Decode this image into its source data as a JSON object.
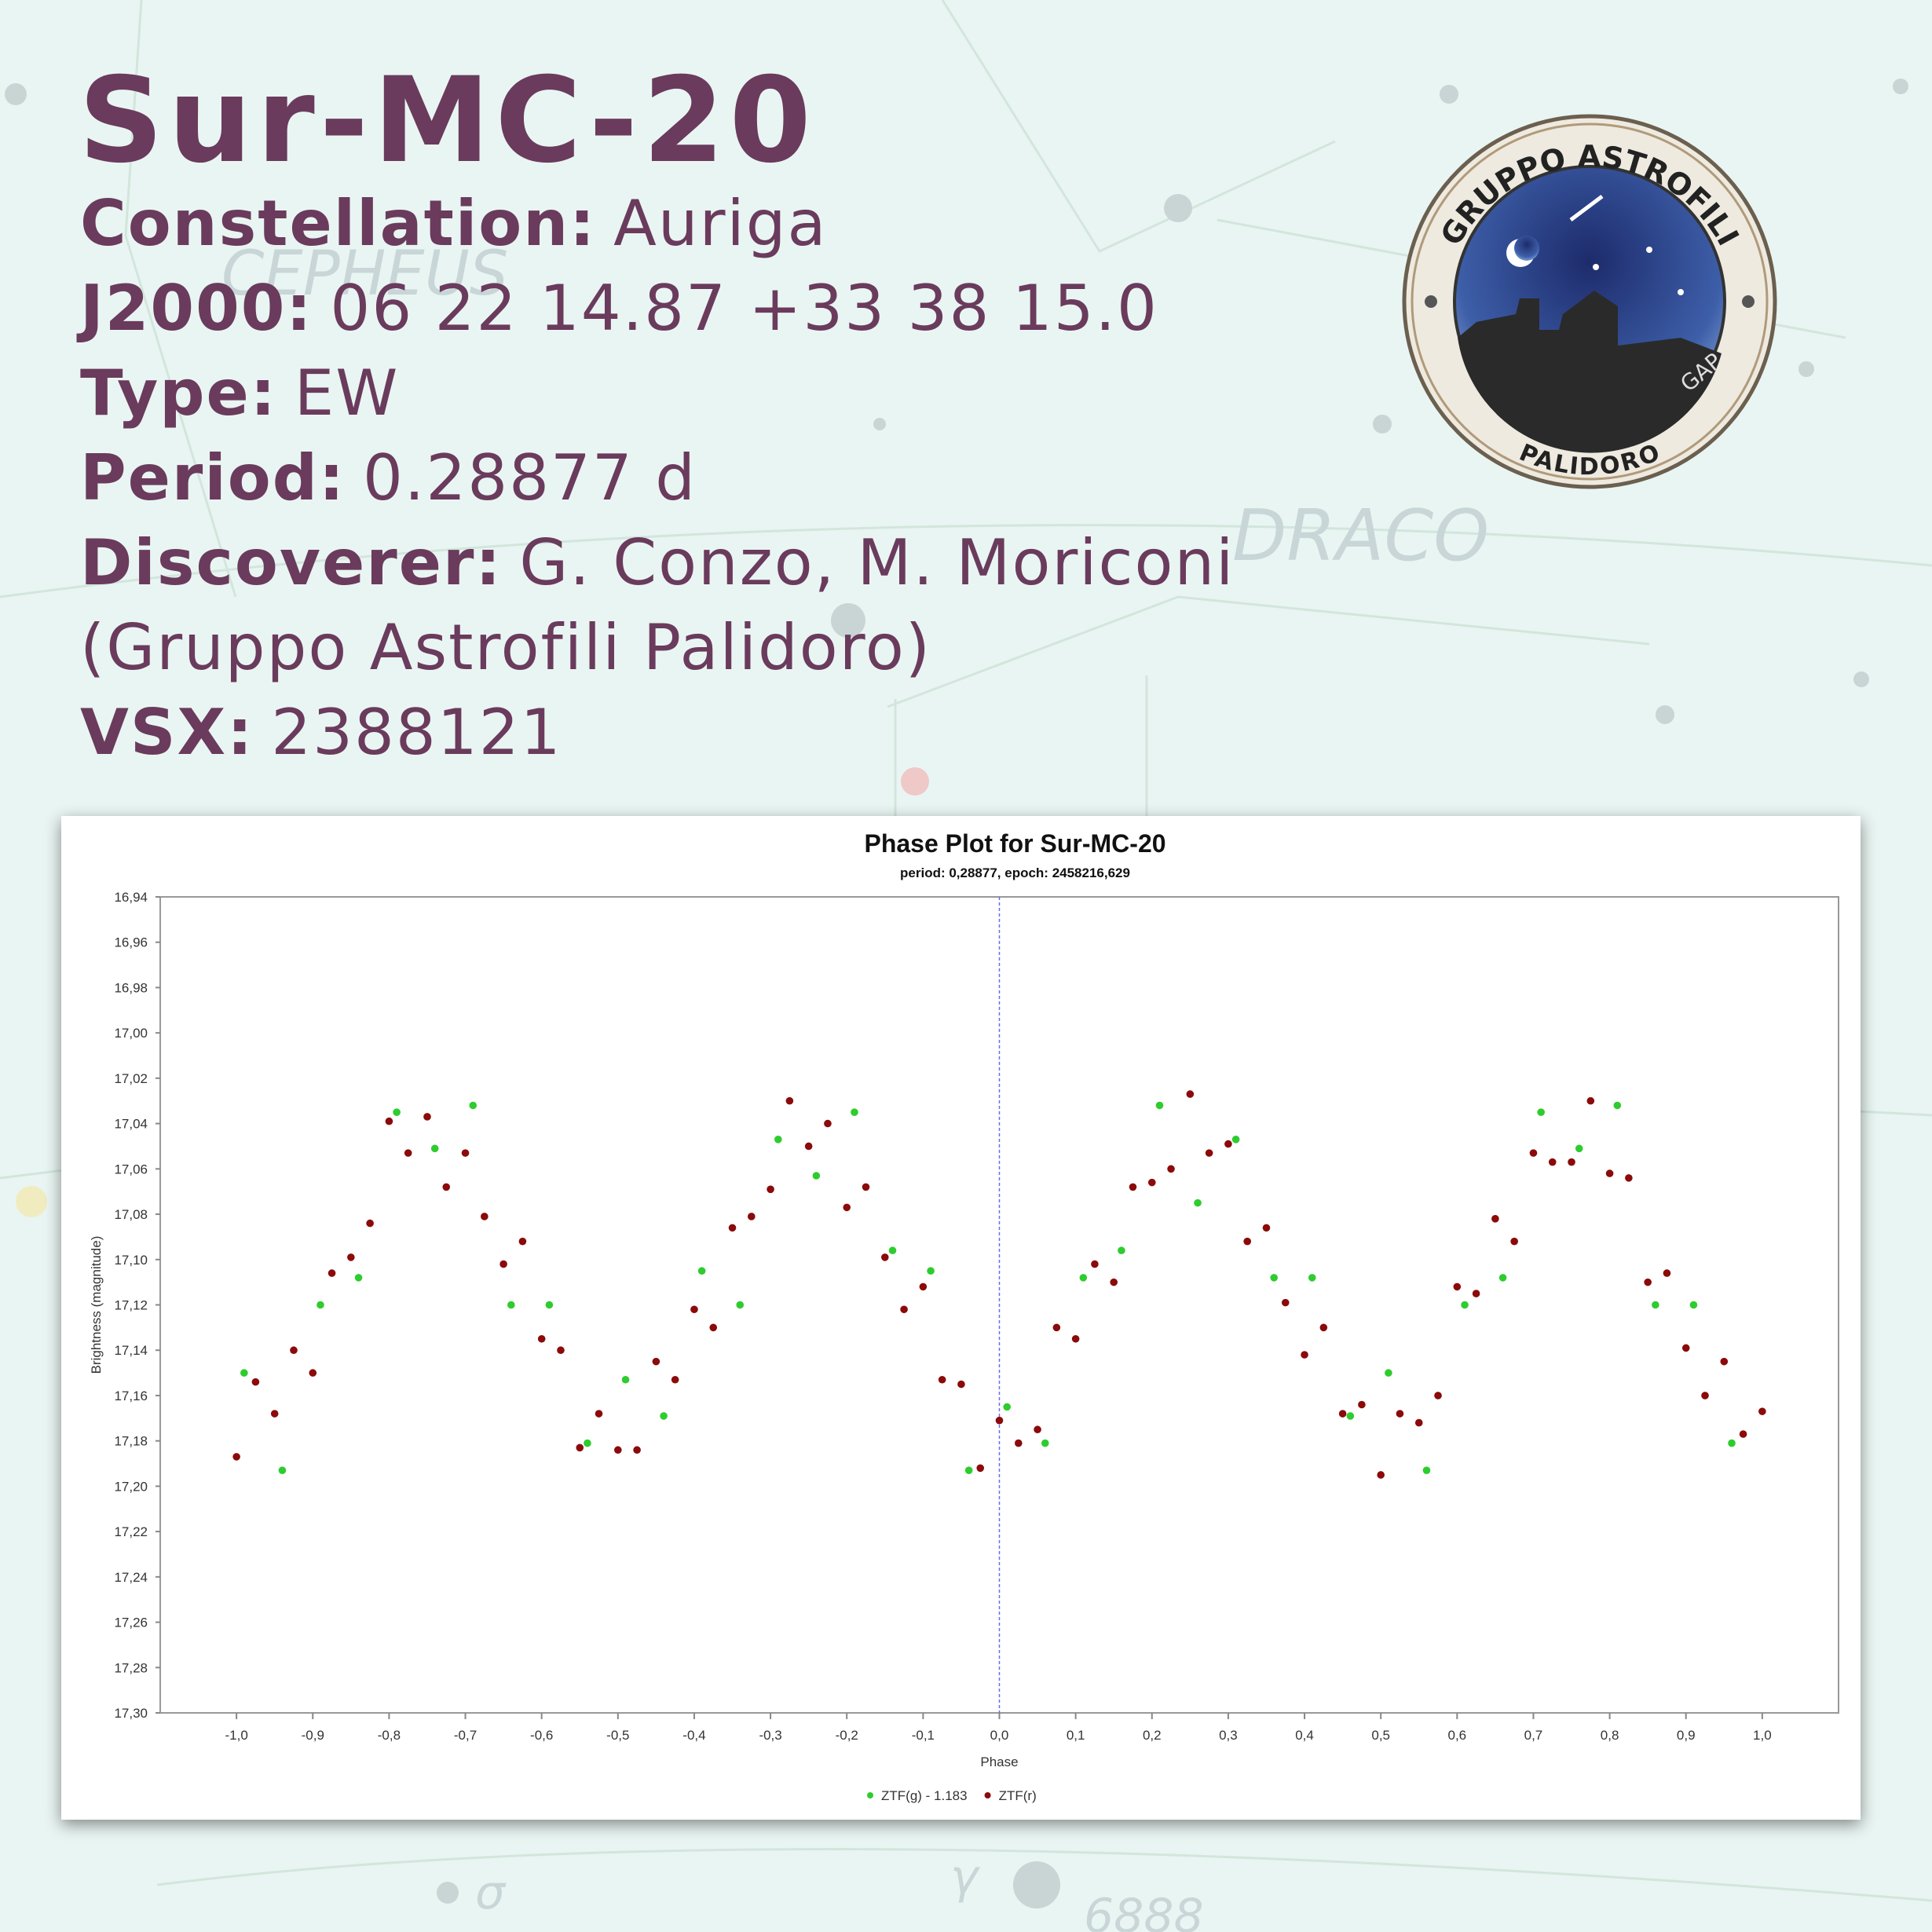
{
  "header": {
    "title": "Sur-MC-20",
    "lines": [
      {
        "label": "Constellation:",
        "value": "Auriga"
      },
      {
        "label": "J2000:",
        "value": "06 22 14.87 +33 38 15.0"
      },
      {
        "label": "Type:",
        "value": "EW"
      },
      {
        "label": "Period:",
        "value": "0.28877 d"
      },
      {
        "label": "Discoverer:",
        "value": "G. Conzo, M. Moriconi"
      },
      {
        "value": "(Gruppo Astrofili Palidoro)"
      },
      {
        "label": "VSX:",
        "value": "2388121"
      }
    ]
  },
  "logo": {
    "top_text": "GRUPPO ASTROFILI",
    "bottom_text": "PALIDORO",
    "side_text": "GAP"
  },
  "background_labels": [
    "CEPHEUS",
    "DRACO",
    "6888",
    "σ",
    "γ"
  ],
  "chart_data": {
    "type": "scatter",
    "title": "Phase Plot for Sur-MC-20",
    "subtitle": "period: 0,28877, epoch: 2458216,629",
    "x_label": "Phase",
    "y_label": "Brightness (magnitude)",
    "xlim": [
      -1.1,
      1.1
    ],
    "ylim": [
      17.3,
      16.94
    ],
    "xticks": [
      {
        "value": -1.0,
        "label": "-1,0"
      },
      {
        "value": -0.9,
        "label": "-0,9"
      },
      {
        "value": -0.8,
        "label": "-0,8"
      },
      {
        "value": -0.7,
        "label": "-0,7"
      },
      {
        "value": -0.6,
        "label": "-0,6"
      },
      {
        "value": -0.5,
        "label": "-0,5"
      },
      {
        "value": -0.4,
        "label": "-0,4"
      },
      {
        "value": -0.3,
        "label": "-0,3"
      },
      {
        "value": -0.2,
        "label": "-0,2"
      },
      {
        "value": -0.1,
        "label": "-0,1"
      },
      {
        "value": 0.0,
        "label": "0,0"
      },
      {
        "value": 0.1,
        "label": "0,1"
      },
      {
        "value": 0.2,
        "label": "0,2"
      },
      {
        "value": 0.3,
        "label": "0,3"
      },
      {
        "value": 0.4,
        "label": "0,4"
      },
      {
        "value": 0.5,
        "label": "0,5"
      },
      {
        "value": 0.6,
        "label": "0,6"
      },
      {
        "value": 0.7,
        "label": "0,7"
      },
      {
        "value": 0.8,
        "label": "0,8"
      },
      {
        "value": 0.9,
        "label": "0,9"
      },
      {
        "value": 1.0,
        "label": "1,0"
      }
    ],
    "yticks": [
      {
        "value": 16.94,
        "label": "16,94"
      },
      {
        "value": 16.96,
        "label": "16,96"
      },
      {
        "value": 16.98,
        "label": "16,98"
      },
      {
        "value": 17.0,
        "label": "17,00"
      },
      {
        "value": 17.02,
        "label": "17,02"
      },
      {
        "value": 17.04,
        "label": "17,04"
      },
      {
        "value": 17.06,
        "label": "17,06"
      },
      {
        "value": 17.08,
        "label": "17,08"
      },
      {
        "value": 17.1,
        "label": "17,10"
      },
      {
        "value": 17.12,
        "label": "17,12"
      },
      {
        "value": 17.14,
        "label": "17,14"
      },
      {
        "value": 17.16,
        "label": "17,16"
      },
      {
        "value": 17.18,
        "label": "17,18"
      },
      {
        "value": 17.2,
        "label": "17,20"
      },
      {
        "value": 17.22,
        "label": "17,22"
      },
      {
        "value": 17.24,
        "label": "17,24"
      },
      {
        "value": 17.26,
        "label": "17,26"
      },
      {
        "value": 17.28,
        "label": "17,28"
      },
      {
        "value": 17.3,
        "label": "17,30"
      }
    ],
    "zero_line": true,
    "series": [
      {
        "name": "ZTF(g) - 1.183",
        "color": "#2ecc2e",
        "x": [
          -0.99,
          -0.94,
          -0.89,
          -0.84,
          -0.79,
          -0.74,
          -0.69,
          -0.64,
          -0.59,
          -0.54,
          -0.49,
          -0.44,
          -0.39,
          -0.34,
          -0.29,
          -0.24,
          -0.19,
          -0.14,
          -0.09,
          -0.04,
          0.01,
          0.06,
          0.11,
          0.16,
          0.21,
          0.26,
          0.31,
          0.36,
          0.41,
          0.46,
          0.51,
          0.56,
          0.61,
          0.66,
          0.71,
          0.76,
          0.81,
          0.86,
          0.91,
          0.96
        ],
        "y": [
          17.15,
          17.193,
          17.12,
          17.108,
          17.035,
          17.051,
          17.032,
          17.12,
          17.12,
          17.181,
          17.153,
          17.169,
          17.105,
          17.12,
          17.047,
          17.063,
          17.035,
          17.096,
          17.105,
          17.193,
          17.165,
          17.181,
          17.108,
          17.096,
          17.032,
          17.075,
          17.047,
          17.108,
          17.108,
          17.169,
          17.15,
          17.193,
          17.12,
          17.108,
          17.035,
          17.051,
          17.032,
          17.12,
          17.12,
          17.181
        ]
      },
      {
        "name": "ZTF(r)",
        "color": "#8b0a0a",
        "x": [
          -1.0,
          -0.975,
          -0.95,
          -0.925,
          -0.9,
          -0.875,
          -0.85,
          -0.825,
          -0.8,
          -0.775,
          -0.75,
          -0.725,
          -0.7,
          -0.675,
          -0.65,
          -0.625,
          -0.6,
          -0.575,
          -0.55,
          -0.525,
          -0.5,
          -0.475,
          -0.45,
          -0.425,
          -0.4,
          -0.375,
          -0.35,
          -0.325,
          -0.3,
          -0.275,
          -0.25,
          -0.225,
          -0.2,
          -0.175,
          -0.15,
          -0.125,
          -0.1,
          -0.075,
          -0.05,
          -0.025,
          0.0,
          0.025,
          0.05,
          0.075,
          0.1,
          0.125,
          0.15,
          0.175,
          0.2,
          0.225,
          0.25,
          0.275,
          0.3,
          0.325,
          0.35,
          0.375,
          0.4,
          0.425,
          0.45,
          0.475,
          0.5,
          0.525,
          0.55,
          0.575,
          0.6,
          0.625,
          0.65,
          0.675,
          0.7,
          0.725,
          0.75,
          0.775,
          0.8,
          0.825,
          0.85,
          0.875,
          0.9,
          0.925,
          0.95,
          0.975,
          1.0
        ],
        "y": [
          17.187,
          17.154,
          17.168,
          17.14,
          17.15,
          17.106,
          17.099,
          17.084,
          17.039,
          17.053,
          17.037,
          17.068,
          17.053,
          17.081,
          17.102,
          17.092,
          17.135,
          17.14,
          17.183,
          17.168,
          17.184,
          17.184,
          17.145,
          17.153,
          17.122,
          17.13,
          17.086,
          17.081,
          17.069,
          17.03,
          17.05,
          17.04,
          17.077,
          17.068,
          17.099,
          17.122,
          17.112,
          17.153,
          17.155,
          17.192,
          17.171,
          17.181,
          17.175,
          17.13,
          17.135,
          17.102,
          17.11,
          17.068,
          17.066,
          17.06,
          17.027,
          17.053,
          17.049,
          17.092,
          17.086,
          17.119,
          17.142,
          17.13,
          17.168,
          17.164,
          17.195,
          17.168,
          17.172,
          17.16,
          17.112,
          17.115,
          17.082,
          17.092,
          17.053,
          17.057,
          17.057,
          17.03,
          17.062,
          17.064,
          17.11,
          17.106,
          17.139,
          17.16,
          17.145,
          17.177,
          17.167
        ]
      }
    ]
  }
}
